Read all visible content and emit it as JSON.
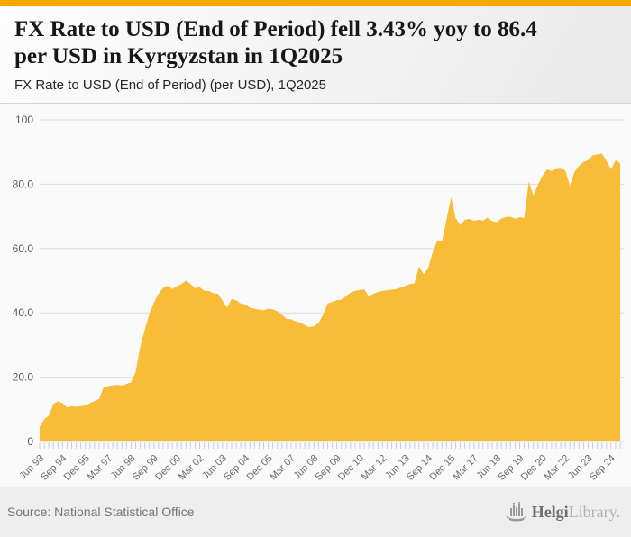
{
  "header": {
    "title_lines": [
      "FX Rate to USD (End of Period) fell 3.43% yoy to 86.4",
      "per USD in Kyrgyzstan in 1Q2025"
    ],
    "title_full": "FX Rate to USD (End of Period) fell 3.43% yoy to 86.4 per USD in Kyrgyzstan in 1Q2025",
    "subtitle": "FX Rate to USD (End of Period) (per USD), 1Q2025"
  },
  "chart_data": {
    "type": "area",
    "title": "FX Rate to USD (End of Period) (per USD), 1Q2025",
    "series_name": "FX Rate to USD (End of Period), Kyrgyzstan",
    "unit": "KGS per USD",
    "frequency": "quarterly",
    "x_start": "Jun 93",
    "x_end": "Mar 25",
    "x_tick_every_n_points": 5,
    "x_tick_labels": [
      "Jun 93",
      "Sep 94",
      "Dec 95",
      "Mar 97",
      "Jun 98",
      "Sep 99",
      "Dec 00",
      "Mar 02",
      "Jun 03",
      "Sep 04",
      "Dec 05",
      "Mar 07",
      "Jun 08",
      "Sep 09",
      "Dec 10",
      "Mar 12",
      "Jun 13",
      "Sep 14",
      "Dec 15",
      "Mar 17",
      "Jun 18",
      "Sep 19",
      "Dec 20",
      "Mar 22",
      "Jun 23",
      "Sep 24"
    ],
    "y_tick_values": [
      0,
      20,
      40,
      60,
      80,
      100
    ],
    "y_tick_labels": [
      "0",
      "20.0",
      "40.0",
      "60.0",
      "80.0",
      "100"
    ],
    "ylim": [
      0,
      100
    ],
    "grid": true,
    "legend_position": "none",
    "values": [
      4.6,
      6.9,
      8.0,
      11.7,
      12.5,
      11.9,
      10.6,
      11.0,
      10.8,
      11.0,
      11.2,
      11.9,
      12.6,
      13.2,
      16.9,
      17.2,
      17.5,
      17.6,
      17.4,
      17.9,
      18.4,
      21.6,
      29.4,
      34.8,
      39.6,
      43.2,
      45.9,
      47.7,
      48.5,
      47.4,
      48.3,
      48.9,
      50.0,
      49.0,
      47.7,
      48.0,
      46.9,
      46.8,
      46.1,
      45.9,
      43.8,
      41.6,
      44.3,
      43.9,
      42.9,
      42.6,
      41.6,
      41.3,
      41.0,
      40.8,
      41.3,
      41.1,
      40.5,
      39.5,
      38.1,
      38.0,
      37.4,
      37.0,
      36.2,
      35.5,
      35.9,
      36.8,
      39.4,
      42.9,
      43.4,
      43.9,
      44.1,
      45.2,
      46.3,
      46.8,
      47.1,
      47.3,
      45.2,
      45.9,
      46.5,
      46.8,
      47.0,
      47.2,
      47.4,
      47.9,
      48.4,
      48.9,
      49.2,
      54.5,
      52.0,
      54.0,
      58.9,
      62.6,
      62.1,
      69.0,
      75.9,
      69.5,
      67.3,
      68.9,
      69.2,
      68.6,
      68.9,
      68.7,
      69.6,
      68.5,
      68.2,
      69.3,
      69.8,
      69.9,
      69.3,
      69.7,
      69.5,
      80.8,
      76.5,
      79.8,
      82.6,
      84.6,
      84.1,
      84.7,
      84.8,
      84.3,
      79.4,
      83.8,
      85.7,
      86.9,
      87.5,
      89.0,
      89.2,
      89.5,
      87.3,
      84.6,
      87.5,
      86.4
    ],
    "last_point": {
      "label": "Mar 25",
      "value": 86.4
    }
  },
  "colors": {
    "accent_bar": "#F6A700",
    "area_fill": "#F9BC38",
    "gridline": "#DEDEDE",
    "quarter_tick": "#C7CEE8",
    "y_label": "#58595B",
    "x_label": "#6B6B6B",
    "chart_bg": "#FAFAFA"
  },
  "footer": {
    "source": "Source: National Statistical Office",
    "logo": {
      "brand_bold": "Helgi",
      "brand_light": "Library."
    }
  }
}
